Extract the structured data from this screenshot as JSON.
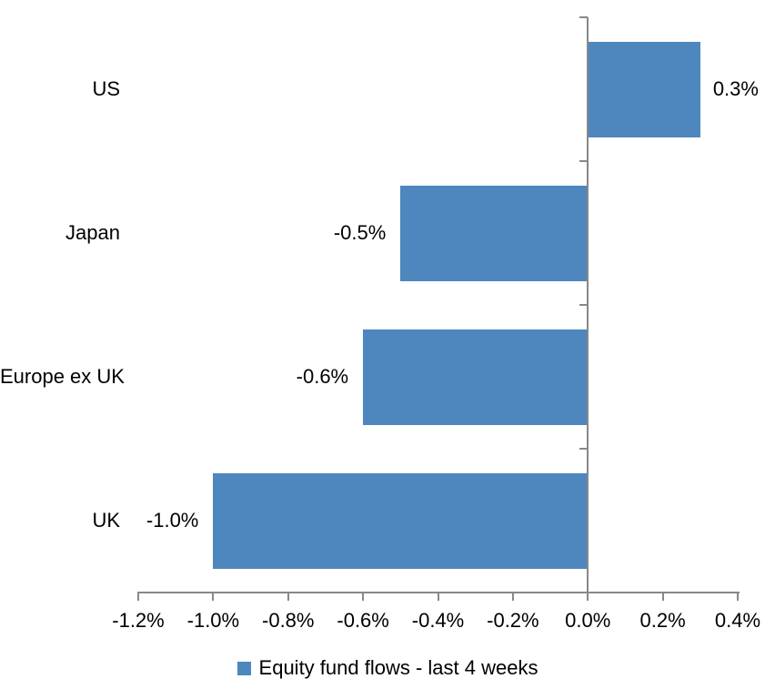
{
  "chart_data": {
    "type": "bar",
    "orientation": "horizontal",
    "categories": [
      "US",
      "Japan",
      "Europe ex UK",
      "UK"
    ],
    "values": [
      0.3,
      -0.5,
      -0.6,
      -1.0
    ],
    "data_labels": [
      "0.3%",
      "-0.5%",
      "-0.6%",
      "-1.0%"
    ],
    "xlim": [
      -1.2,
      0.4
    ],
    "x_ticks": [
      -1.2,
      -1.0,
      -0.8,
      -0.6,
      -0.4,
      -0.2,
      0.0,
      0.2,
      0.4
    ],
    "x_tick_labels": [
      "-1.2%",
      "-1.0%",
      "-0.8%",
      "-0.6%",
      "-0.4%",
      "-0.2%",
      "0.0%",
      "0.2%",
      "0.4%"
    ],
    "grid": false,
    "legend_position": "bottom",
    "legend": [
      {
        "label": "Equity fund flows - last 4 weeks",
        "color": "#4D87BD"
      }
    ],
    "colors": {
      "bar": "#4D87BD",
      "axis": "#888888",
      "text": "#000000",
      "background": "#FFFFFF"
    }
  }
}
